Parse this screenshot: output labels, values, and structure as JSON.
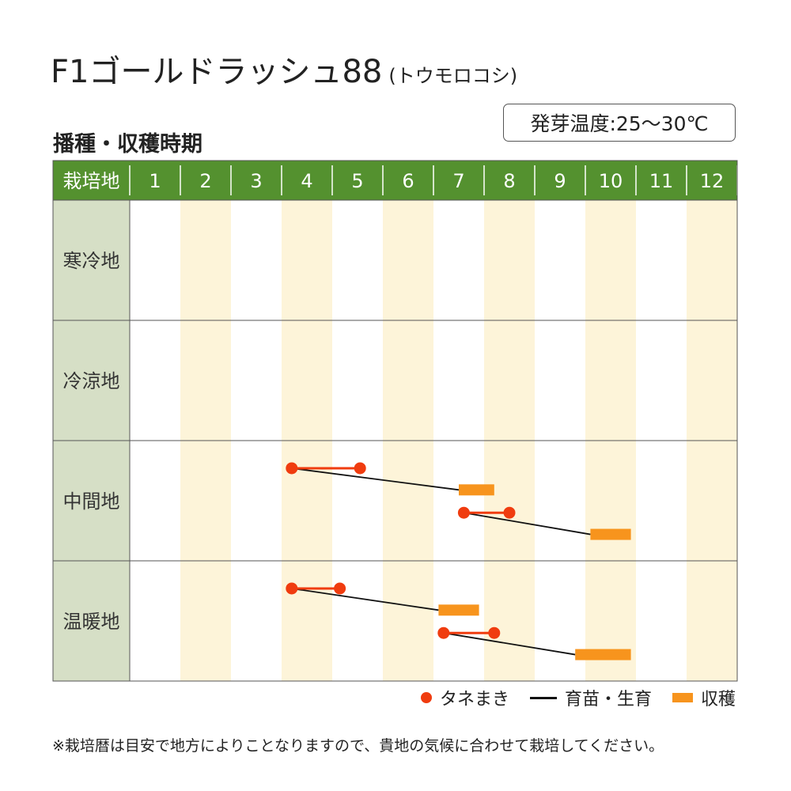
{
  "header": {
    "title_main": "F1ゴールドラッシュ88",
    "title_sub": "(トウモロコシ)",
    "germination_temp": "発芽温度:25〜30℃",
    "schedule_heading": "播種・収穫時期"
  },
  "footer_note": "※栽培暦は目安で地方によりことなりますので、貴地の気候に合わせて栽培してください。",
  "legend": {
    "sowing": "タネまき",
    "growing": "育苗・生育",
    "harvest": "収穫"
  },
  "colors": {
    "header_green": "#54912f",
    "region_bg": "#d6dfc6",
    "stripe": "#fdf4d9",
    "sowing_red": "#f03c0f",
    "harvest_orange": "#f7941d",
    "growth_line": "#111111"
  },
  "chart_data": {
    "type": "table",
    "corner_label": "栽培地",
    "months": [
      "1",
      "2",
      "3",
      "4",
      "5",
      "6",
      "7",
      "8",
      "9",
      "10",
      "11",
      "12"
    ],
    "regions": [
      {
        "name": "寒冷地",
        "schedules": []
      },
      {
        "name": "冷涼地",
        "schedules": []
      },
      {
        "name": "中間地",
        "schedules": [
          {
            "sow": [
              4.2,
              5.55
            ],
            "harvest": [
              7.5,
              8.2
            ]
          },
          {
            "sow": [
              7.6,
              8.5
            ],
            "harvest": [
              10.1,
              10.9
            ]
          }
        ]
      },
      {
        "name": "温暖地",
        "schedules": [
          {
            "sow": [
              4.2,
              5.15
            ],
            "harvest": [
              7.1,
              7.9
            ]
          },
          {
            "sow": [
              7.2,
              8.2
            ],
            "harvest": [
              9.8,
              10.9
            ]
          }
        ]
      }
    ]
  }
}
